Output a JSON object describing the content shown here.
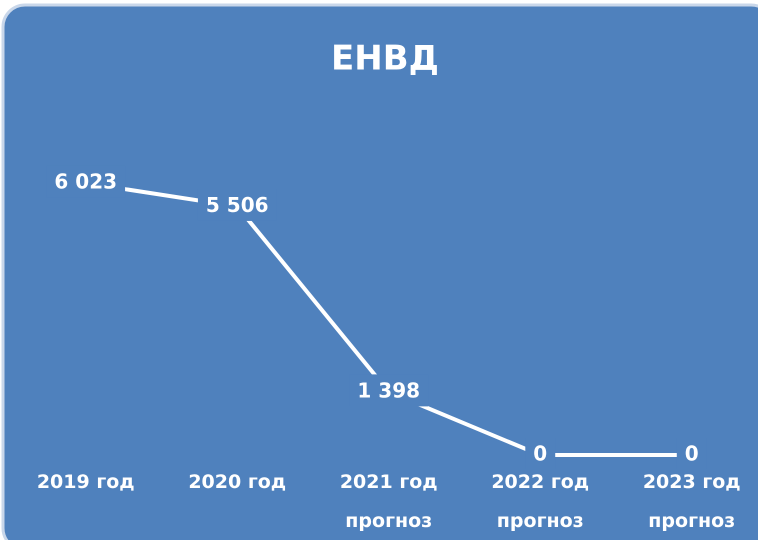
{
  "chart_data": {
    "type": "line",
    "title": "ЕНВД",
    "categories": [
      "2019 год",
      "2020 год",
      "2021 год прогноз",
      "2022 год прогноз",
      "2023 год прогноз"
    ],
    "values": [
      6023,
      5506,
      1398,
      0,
      0
    ],
    "value_labels": [
      "6 023",
      "5 506",
      "1 398",
      "0",
      "0"
    ],
    "color": "#ffffff",
    "ylim": [
      0,
      7000
    ]
  }
}
